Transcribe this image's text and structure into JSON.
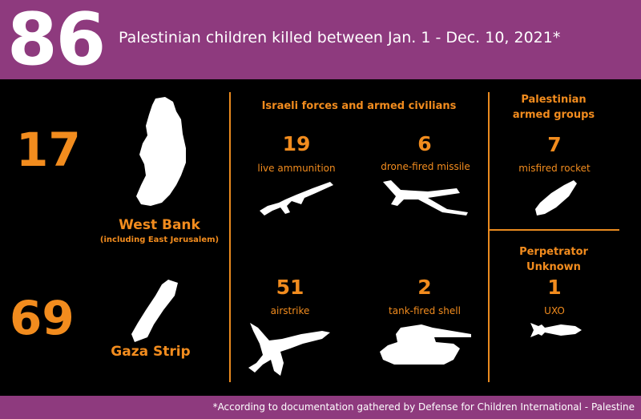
{
  "header": {
    "total": "86",
    "title": "Palestinian children killed between Jan. 1 - Dec. 10, 2021*"
  },
  "regions": {
    "west_bank": {
      "count": "17",
      "name": "West Bank",
      "sub": "(including East Jerusalem)"
    },
    "gaza": {
      "count": "69",
      "name": "Gaza Strip"
    }
  },
  "israeli": {
    "heading": "Israeli forces and armed civilians",
    "items": [
      {
        "count": "19",
        "label": "live ammunition",
        "icon": "rifle-icon"
      },
      {
        "count": "6",
        "label": "drone-fired missile",
        "icon": "drone-icon"
      },
      {
        "count": "51",
        "label": "airstrike",
        "icon": "fighter-jet-icon"
      },
      {
        "count": "2",
        "label": "tank-fired shell",
        "icon": "tank-icon"
      }
    ]
  },
  "palestinian": {
    "heading_line1": "Palestinian",
    "heading_line2": "armed groups",
    "count": "7",
    "label": "misfired rocket",
    "icon": "rocket-icon"
  },
  "unknown": {
    "heading_line1": "Perpetrator",
    "heading_line2": "Unknown",
    "count": "1",
    "label": "UXO",
    "icon": "bomb-icon"
  },
  "footer": {
    "note": "*According to documentation gathered by Defense for Children International - Palestine"
  },
  "colors": {
    "accent": "#f28c1e",
    "banner": "#8e3a7e",
    "background": "#000000"
  }
}
